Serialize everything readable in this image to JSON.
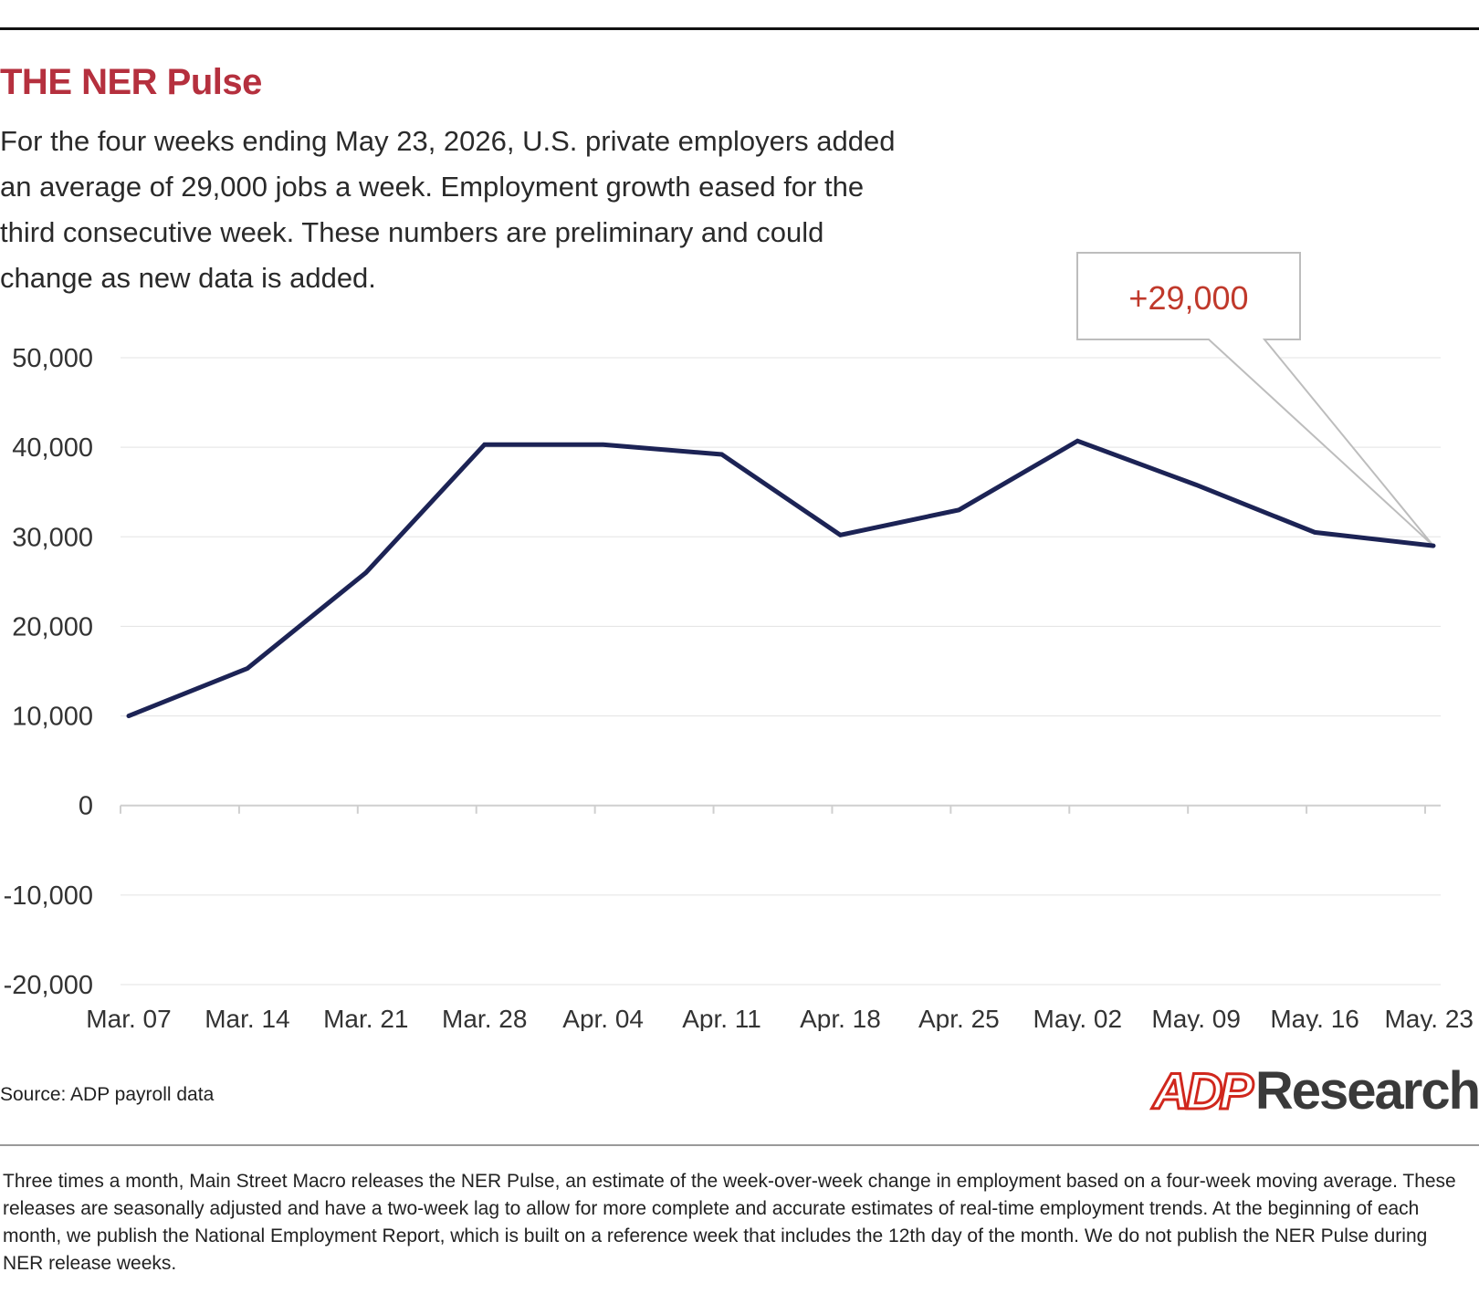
{
  "header": {
    "title": "THE NER Pulse",
    "subtitle": "For the four weeks ending May 23, 2026, U.S. private employers added an average of 29,000 jobs a week. Employment growth eased for the third consecutive week. These numbers are preliminary and could change as new data is added."
  },
  "chart_data": {
    "type": "line",
    "categories": [
      "Mar. 07",
      "Mar. 14",
      "Mar. 21",
      "Mar. 28",
      "Apr. 04",
      "Apr. 11",
      "Apr. 18",
      "Apr. 25",
      "May. 02",
      "May. 09",
      "May. 16",
      "May. 23"
    ],
    "series": [
      {
        "values": [
          10000,
          15300,
          26000,
          40300,
          40300,
          39200,
          30200,
          33000,
          40700,
          35800,
          30500,
          29000
        ]
      }
    ],
    "yticks": [
      "50,000",
      "40,000",
      "30,000",
      "20,000",
      "10,000",
      "0",
      "-10,000",
      "-20,000"
    ],
    "ylim": [
      -20000,
      50000
    ],
    "grid": true,
    "annotation": {
      "label": "+29,000",
      "target_category": "May. 23"
    },
    "colors": {
      "line": "#1c2355",
      "grid": "#e3e3e3",
      "axis": "#cfcfcf",
      "annotation_text": "#c0392b",
      "callout_border": "#bdbdbd"
    }
  },
  "footer": {
    "source": "Source: ADP payroll data",
    "logo_mark": "ADP",
    "logo_text": "Research",
    "note": "Three times a month, Main Street Macro releases the NER Pulse, an estimate of the week-over-week change in employment based on a four-week moving average. These releases are seasonally adjusted and have a two-week lag to allow for more complete and accurate estimates of real-time employment trends. At the beginning of each month, we publish the National Employment Report, which is built on a reference week that includes the 12th day of the month. We do not publish the NER Pulse during NER release weeks."
  }
}
